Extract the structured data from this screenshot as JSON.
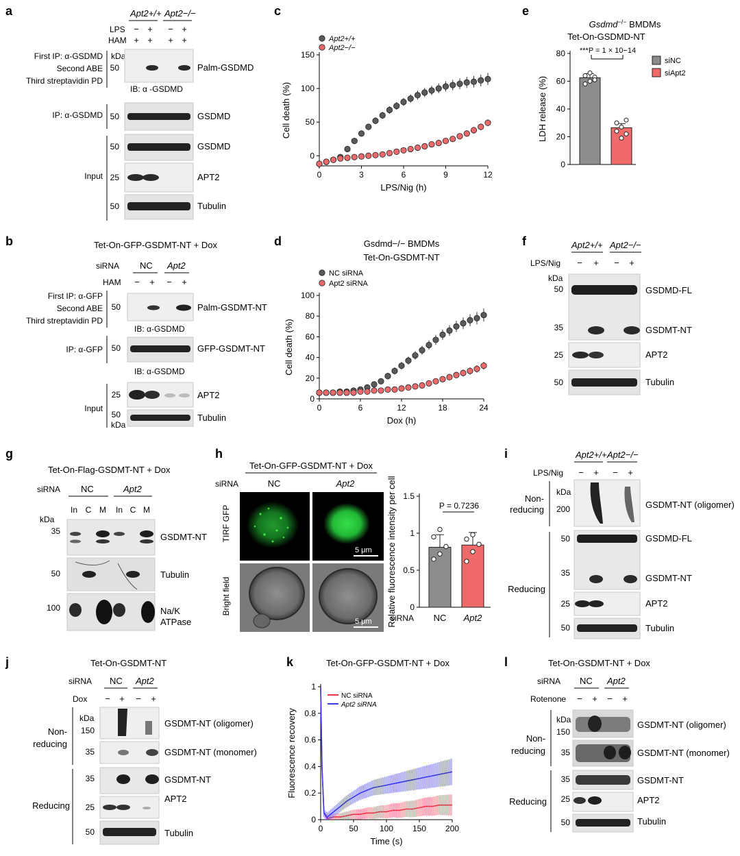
{
  "panels": {
    "a": {
      "letter": "a",
      "genotypes": [
        "Apt2+/+",
        "Apt2−/−"
      ],
      "row_labels": [
        "LPS",
        "HAM"
      ],
      "lps": [
        "−",
        "+",
        "−",
        "+"
      ],
      "ham": [
        "+",
        "+",
        "+",
        "+"
      ],
      "ip_lines": [
        "First IP: α-GSDMD",
        "Second ABE",
        "Third streptavidin PD"
      ],
      "kda": "kDa",
      "ib": "IB: α -GSDMD",
      "ip2": "IP: α-GSDMD",
      "input": "Input",
      "bands": [
        {
          "mw": "50",
          "label": "Palm-GSDMD"
        },
        {
          "mw": "50",
          "label": "GSDMD"
        },
        {
          "mw": "50",
          "label": "GSDMD"
        },
        {
          "mw": "25",
          "label": "APT2"
        },
        {
          "mw": "50",
          "label": "Tubulin"
        }
      ]
    },
    "b": {
      "letter": "b",
      "title": "Tet-On-GFP-GSDMT-NT  + Dox",
      "sirna": "siRNA",
      "groups": [
        "NC",
        "Apt2"
      ],
      "ham_label": "HAM",
      "ham": [
        "−",
        "+",
        "−",
        "+"
      ],
      "ip_lines": [
        "First IP: α-GFP",
        "Second ABE",
        "Third streptavidin PD"
      ],
      "ib1": "IB: α-GSDMD",
      "ip2": "IP: α-GFP",
      "ib2": "IB: α-GSDMD",
      "input": "Input",
      "kda": "kDa",
      "bands": [
        {
          "mw": "50",
          "label": "Palm-GSDMT-NT"
        },
        {
          "mw": "50",
          "label": "GFP-GSDMT-NT"
        },
        {
          "mw": "25",
          "label": "APT2"
        },
        {
          "mw": "50",
          "label": "Tubulin"
        }
      ]
    },
    "e": {
      "letter": "e",
      "title1": "Gsdmd−/− BMDMs",
      "title2": "Tet-On-GSDMD-NT",
      "legend": [
        "siNC",
        "siApt2"
      ],
      "pvalue": "***P = 1 × 10−14",
      "siNC_pts": [
        58,
        60,
        63,
        64,
        66,
        61
      ],
      "siApt2_pts": [
        30,
        27,
        22,
        24,
        19,
        32
      ]
    },
    "f": {
      "letter": "f",
      "genotypes": [
        "Apt2+/+",
        "Apt2−/−"
      ],
      "row_label": "LPS/Nig",
      "lanes": [
        "−",
        "+",
        "−",
        "+"
      ],
      "kda": "kDa",
      "mw": [
        "50",
        "35",
        "25",
        "50"
      ],
      "labels": [
        "GSDMD-FL",
        "GSDMT-NT",
        "APT2",
        "Tubulin"
      ]
    },
    "g": {
      "letter": "g",
      "title": "Tet-On-Flag-GSDMT-NT + Dox",
      "sirna": "siRNA",
      "groups": [
        "NC",
        "Apt2"
      ],
      "lanes": [
        "In",
        "C",
        "M",
        "In",
        "C",
        "M"
      ],
      "kda": "kDa",
      "mw": [
        "35",
        "50",
        "100"
      ],
      "labels": [
        "GSDMT-NT",
        "Tubulin",
        "Na/K",
        "ATPase"
      ]
    },
    "h": {
      "letter": "h",
      "title": "Tet-On-GFP-GSDMT-NT + Dox",
      "sirna": "siRNA",
      "groups": [
        "NC",
        "Apt2"
      ],
      "row1": "TIRF GFP",
      "row2": "Bright field",
      "scale": "5 μm",
      "pvalue": "P = 0.7236",
      "ylabel": "Relative fluorescence intensity per cell",
      "nc_pts": [
        0.65,
        0.72,
        0.82,
        0.95,
        1.05
      ],
      "apt2_pts": [
        0.62,
        0.75,
        0.85,
        0.92,
        0.98
      ]
    },
    "i": {
      "letter": "i",
      "genotypes": [
        "Apt2+/+",
        "Apt2−/−"
      ],
      "row_label": "LPS/Nig",
      "lanes": [
        "−",
        "+",
        "−",
        "+"
      ],
      "nonreducing": [
        "Non-",
        "reducing"
      ],
      "reducing": "Reducing",
      "kda": "kDa",
      "mw": [
        "200",
        "50",
        "35",
        "25",
        "50"
      ],
      "labels": [
        "GSDMT-NT (oligomer)",
        "GSDMD-FL",
        "GSDMT-NT",
        "APT2",
        "Tubulin"
      ]
    },
    "j": {
      "letter": "j",
      "title": "Tet-On-GSDMT-NT",
      "sirna": "siRNA",
      "groups": [
        "NC",
        "Apt2"
      ],
      "row_label": "Dox",
      "lanes": [
        "−",
        "+",
        "−",
        "+"
      ],
      "nonreducing": [
        "Non-",
        "reducing"
      ],
      "reducing": "Reducing",
      "kda": "kDa",
      "mw": [
        "150",
        "35",
        "35",
        "25",
        "50"
      ],
      "labels": [
        "GSDMT-NT (oligomer)",
        "GSDMT-NT (monomer)",
        "GSDMT-NT",
        "APT2",
        "Tubulin"
      ]
    },
    "l": {
      "letter": "l",
      "title": "Tet-On-GSDMT-NT + Dox",
      "sirna": "siRNA",
      "groups": [
        "NC",
        "Apt2"
      ],
      "row_label": "Rotenone",
      "lanes": [
        "−",
        "+",
        "−",
        "+"
      ],
      "nonreducing": [
        "Non-",
        "reducing"
      ],
      "reducing": "Reducing",
      "kda": "kDa",
      "mw": [
        "150",
        "35",
        "35",
        "25",
        "50"
      ],
      "labels": [
        "GSDMT-NT (oligomer)",
        "GSDMT-NT (monomer)",
        "GSDMT-NT",
        "APT2",
        "Tubulin"
      ]
    }
  },
  "chart_data": [
    {
      "panel": "c",
      "type": "scatter",
      "xlabel": "LPS/Nig (h)",
      "ylabel": "Cell death (%)",
      "xlim": [
        0,
        12
      ],
      "ylim": [
        -15,
        150
      ],
      "xticks": [
        0,
        3,
        6,
        9,
        12
      ],
      "yticks": [
        0,
        50,
        100,
        150
      ],
      "x": [
        0,
        0.5,
        1,
        1.5,
        2,
        2.5,
        3,
        3.5,
        4,
        4.5,
        5,
        5.5,
        6,
        6.5,
        7,
        7.5,
        8,
        8.5,
        9,
        9.5,
        10,
        10.5,
        11,
        11.5,
        12
      ],
      "series": [
        {
          "name": "Apt2+/+",
          "color": "#5a5a5a",
          "values": [
            -12,
            -9,
            -6,
            -2,
            10,
            22,
            33,
            43,
            52,
            60,
            68,
            74,
            80,
            85,
            90,
            94,
            97,
            100,
            103,
            105,
            107,
            109,
            110,
            112,
            114
          ]
        },
        {
          "name": "Apt2−/−",
          "color": "#e86a6a",
          "values": [
            -12,
            -9,
            -6,
            -4,
            -3,
            -2,
            -1,
            0,
            1,
            2,
            4,
            6,
            8,
            10,
            12,
            14,
            17,
            19,
            22,
            25,
            29,
            33,
            38,
            43,
            49
          ]
        }
      ]
    },
    {
      "panel": "d",
      "type": "scatter",
      "title": "Gsdmd−/− BMDMs",
      "subtitle": "Tet-On-GSDMT-NT",
      "xlabel": "Dox (h)",
      "ylabel": "Cell death (%)",
      "xlim": [
        0,
        24
      ],
      "ylim": [
        0,
        100
      ],
      "xticks": [
        0,
        6,
        12,
        18,
        24
      ],
      "yticks": [
        0,
        20,
        40,
        60,
        80,
        100
      ],
      "x": [
        0,
        1,
        2,
        3,
        4,
        5,
        6,
        7,
        8,
        9,
        10,
        11,
        12,
        13,
        14,
        15,
        16,
        17,
        18,
        19,
        20,
        21,
        22,
        23,
        24
      ],
      "series": [
        {
          "name": "NC siRNA",
          "color": "#5a5a5a",
          "values": [
            6,
            6,
            6,
            7,
            7,
            8,
            9,
            11,
            14,
            17,
            22,
            27,
            32,
            37,
            42,
            47,
            52,
            57,
            62,
            66,
            70,
            73,
            76,
            78,
            81
          ]
        },
        {
          "name": "Apt2 siRNA",
          "color": "#e86a6a",
          "values": [
            6,
            6,
            6,
            6,
            6,
            6,
            7,
            7,
            8,
            8,
            9,
            9,
            10,
            11,
            12,
            13,
            15,
            17,
            19,
            21,
            23,
            25,
            27,
            29,
            32
          ]
        }
      ]
    },
    {
      "panel": "e",
      "type": "bar",
      "categories": [
        "siNC",
        "siApt2"
      ],
      "values": [
        62.5,
        26.5
      ],
      "ylabel": "LDH release (%)",
      "ylim": [
        0,
        80
      ],
      "yticks": [
        0,
        20,
        40,
        60,
        80
      ]
    },
    {
      "panel": "h",
      "type": "bar",
      "categories": [
        "NC",
        "Apt2"
      ],
      "values": [
        0.81,
        0.84
      ],
      "ylabel": "Relative fluorescence intensity per cell",
      "ylim": [
        0,
        1.5
      ],
      "yticks": [
        0,
        0.5,
        1.0,
        1.5
      ]
    },
    {
      "panel": "k",
      "type": "line",
      "title": "Tet-On-GFP-GSDMT-NT + Dox",
      "xlabel": "Time (s)",
      "ylabel": "Fluorescence recovery",
      "xlim": [
        0,
        200
      ],
      "ylim": [
        0,
        1.0
      ],
      "xticks": [
        0,
        50,
        100,
        150,
        200
      ],
      "yticks": [
        0,
        0.2,
        0.4,
        0.6,
        0.8,
        1.0
      ],
      "series": [
        {
          "name": "NC siRNA",
          "color": "#e8394a",
          "x": [
            0,
            2,
            5,
            10,
            20,
            30,
            40,
            50,
            60,
            70,
            80,
            90,
            100,
            110,
            120,
            130,
            140,
            150,
            160,
            170,
            180,
            190,
            200
          ],
          "values": [
            1.0,
            0.4,
            0.05,
            0.01,
            0.02,
            0.02,
            0.03,
            0.04,
            0.04,
            0.05,
            0.05,
            0.06,
            0.06,
            0.07,
            0.07,
            0.08,
            0.08,
            0.09,
            0.1,
            0.1,
            0.11,
            0.11,
            0.11
          ]
        },
        {
          "name": "Apt2 siRNA",
          "color": "#3a3ae0",
          "x": [
            0,
            2,
            5,
            10,
            20,
            30,
            40,
            50,
            60,
            70,
            80,
            90,
            100,
            110,
            120,
            130,
            140,
            150,
            160,
            170,
            180,
            190,
            200
          ],
          "values": [
            1.0,
            0.4,
            0.05,
            0.02,
            0.06,
            0.1,
            0.14,
            0.17,
            0.2,
            0.22,
            0.24,
            0.25,
            0.26,
            0.27,
            0.28,
            0.29,
            0.3,
            0.31,
            0.32,
            0.33,
            0.34,
            0.35,
            0.36
          ]
        }
      ]
    }
  ]
}
